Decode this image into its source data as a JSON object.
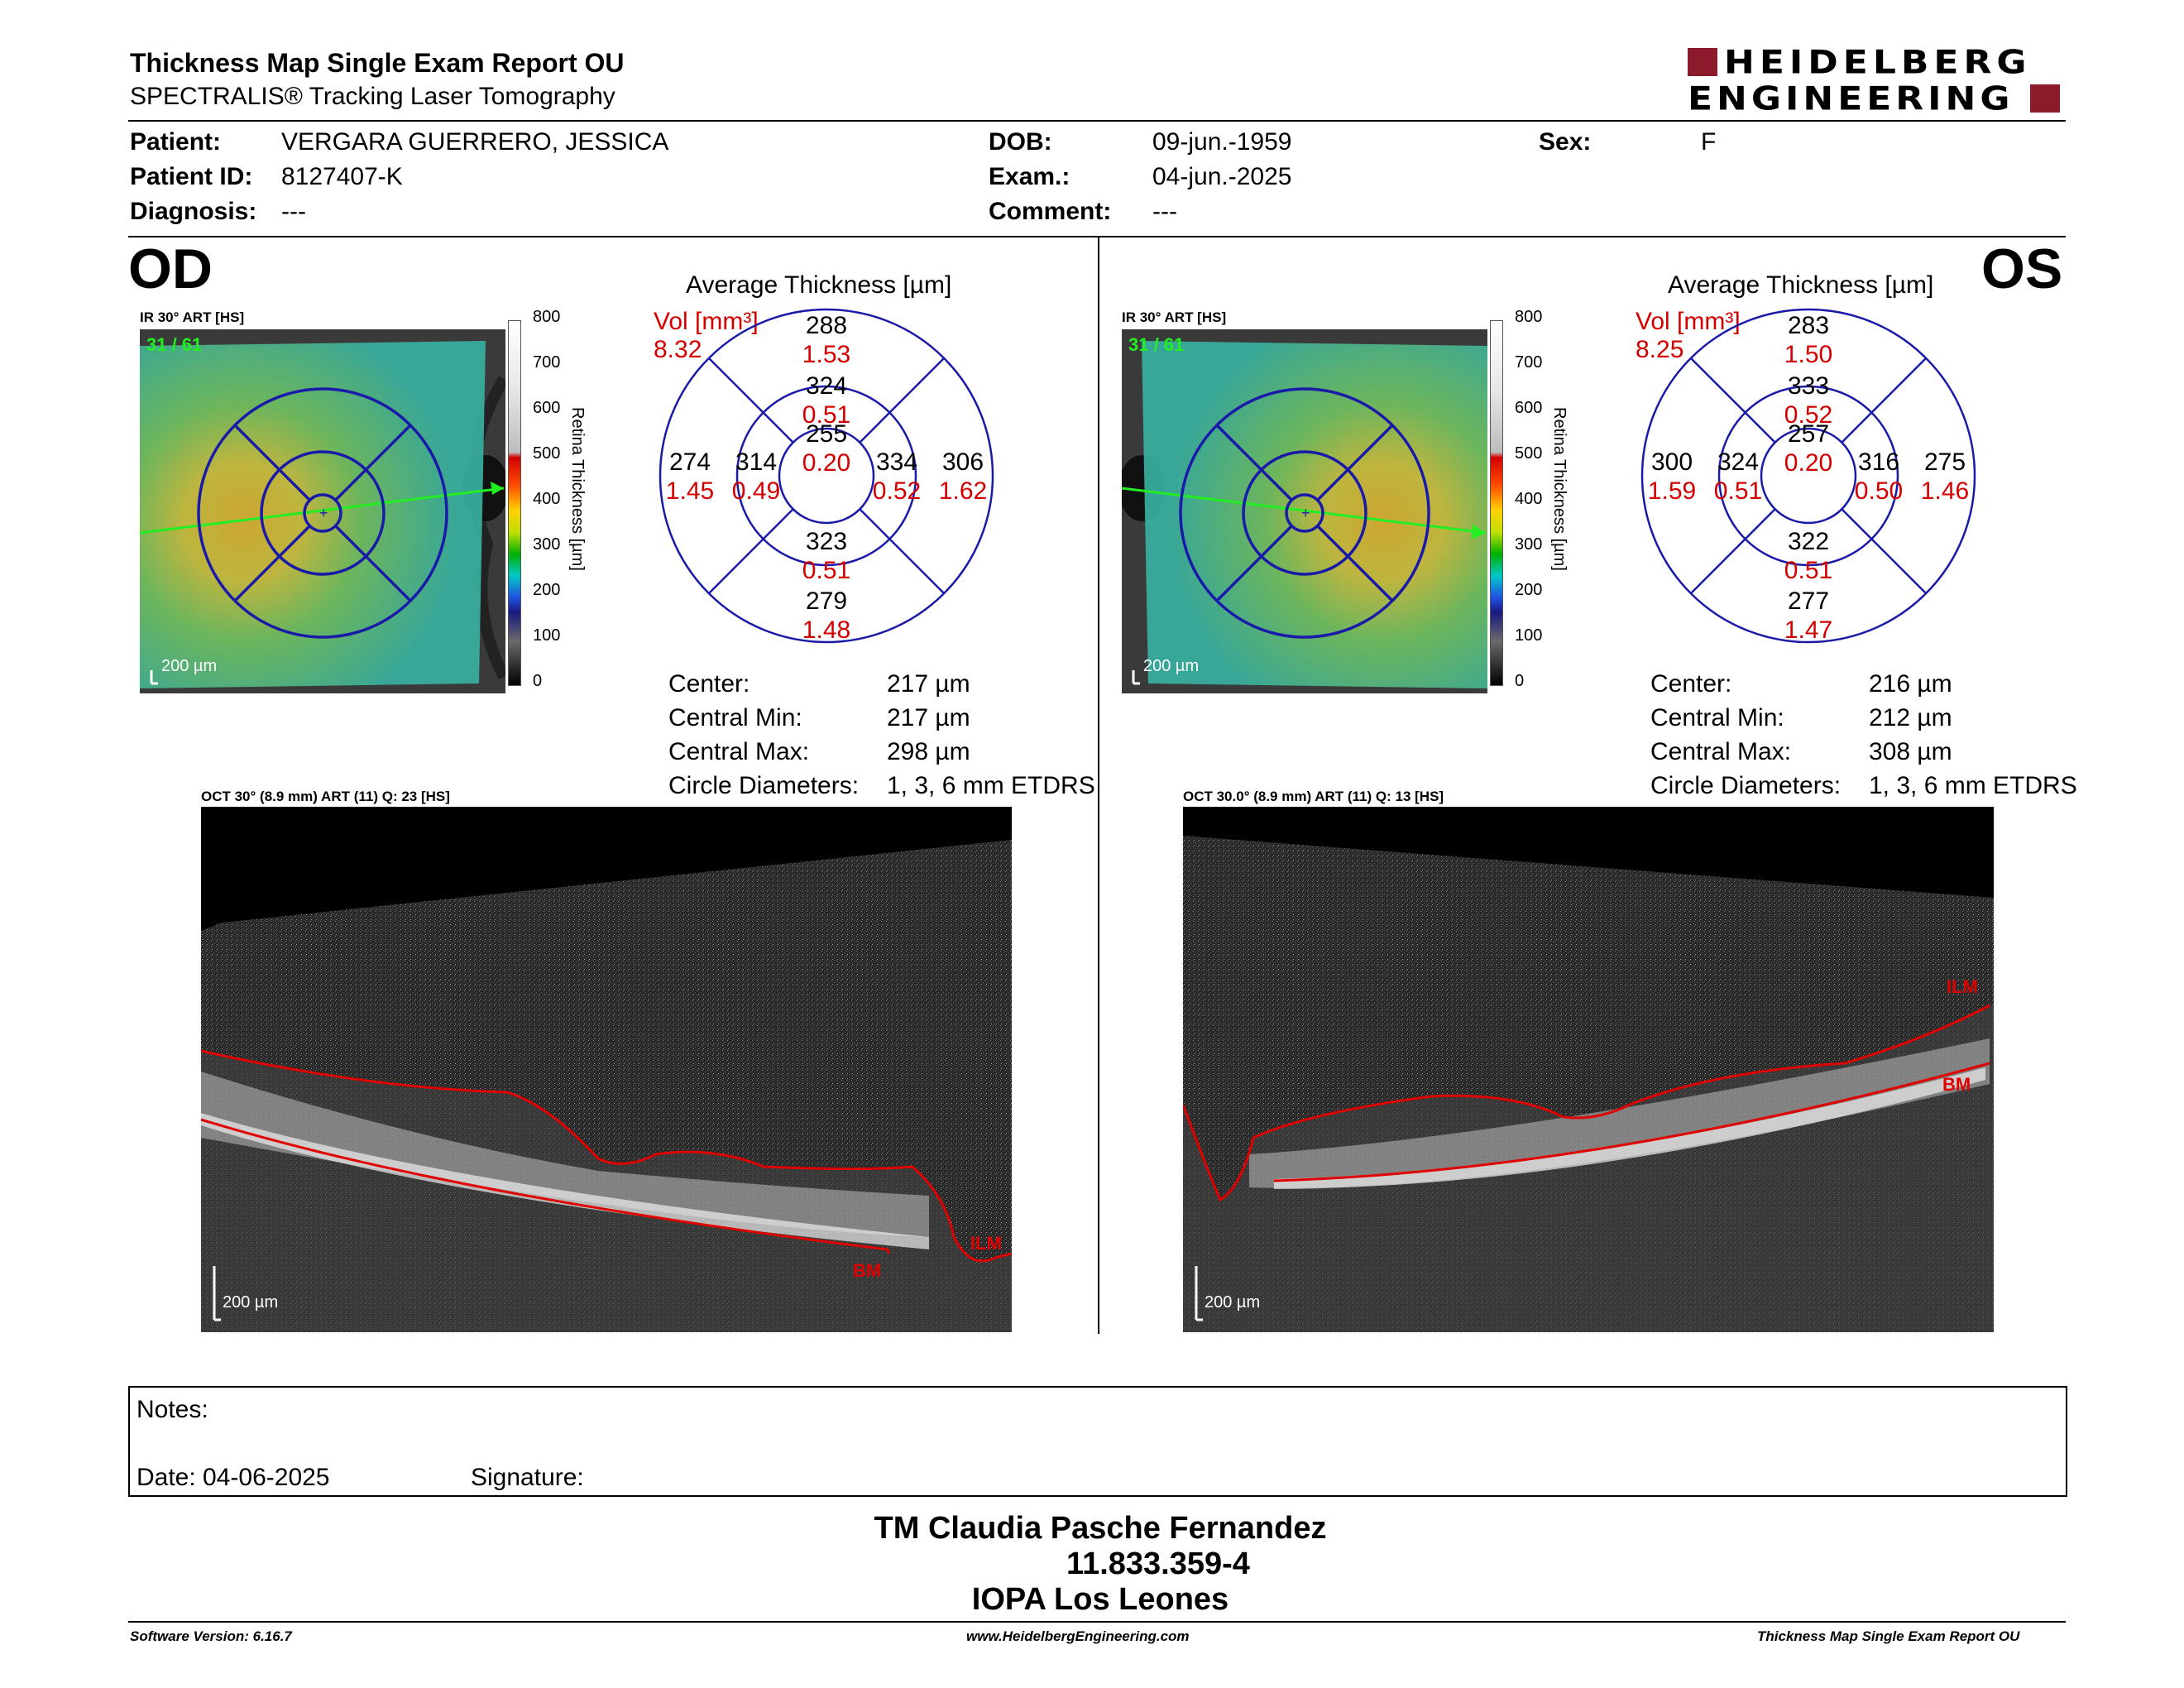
{
  "header": {
    "title": "Thickness Map Single Exam Report OU",
    "subtitle": "SPECTRALIS® Tracking Laser Tomography",
    "logo_line1": "HEIDELBERG",
    "logo_line2": "ENGINEERING",
    "brand_color": "#8b1a2b"
  },
  "patient": {
    "patient_label": "Patient:",
    "patient_value": "VERGARA GUERRERO, JESSICA",
    "id_label": "Patient ID:",
    "id_value": "8127407-K",
    "diagnosis_label": "Diagnosis:",
    "diagnosis_value": "---",
    "dob_label": "DOB:",
    "dob_value": "09-jun.-1959",
    "exam_label": "Exam.:",
    "exam_value": "04-jun.-2025",
    "comment_label": "Comment:",
    "comment_value": "---",
    "sex_label": "Sex:",
    "sex_value": "F"
  },
  "od": {
    "eye": "OD",
    "ir_label": "IR 30° ART [HS]",
    "ir_counter": "31 / 61",
    "scale": "200 µm",
    "colorbar_ticks": [
      "800",
      "700",
      "600",
      "500",
      "400",
      "300",
      "200",
      "100",
      "0"
    ],
    "colorbar_label": "Retina Thickness [µm]",
    "avg_title": "Average Thickness [µm]",
    "vol_label": "Vol [mm³]",
    "vol_value": "8.32",
    "etdrs": {
      "center_t": "255",
      "center_v": "0.20",
      "inner_sup_t": "324",
      "inner_sup_v": "0.51",
      "inner_inf_t": "323",
      "inner_inf_v": "0.51",
      "inner_left_t": "314",
      "inner_left_v": "0.49",
      "inner_right_t": "334",
      "inner_right_v": "0.52",
      "outer_sup_t": "288",
      "outer_sup_v": "1.53",
      "outer_inf_t": "279",
      "outer_inf_v": "1.48",
      "outer_left_t": "274",
      "outer_left_v": "1.45",
      "outer_right_t": "306",
      "outer_right_v": "1.62"
    },
    "stats": {
      "center_label": "Center:",
      "center_value": "217 µm",
      "min_label": "Central Min:",
      "min_value": "217 µm",
      "max_label": "Central Max:",
      "max_value": "298 µm",
      "diam_label": "Circle Diameters:",
      "diam_value": "1, 3, 6 mm ETDRS"
    },
    "oct_label": "OCT 30° (8.9 mm) ART (11) Q: 23 [HS]",
    "ilm": "ILM",
    "bm": "BM"
  },
  "os": {
    "eye": "OS",
    "ir_label": "IR 30° ART [HS]",
    "ir_counter": "31 / 61",
    "scale": "200 µm",
    "colorbar_ticks": [
      "800",
      "700",
      "600",
      "500",
      "400",
      "300",
      "200",
      "100",
      "0"
    ],
    "colorbar_label": "Retina Thickness [µm]",
    "avg_title": "Average Thickness [µm]",
    "vol_label": "Vol [mm³]",
    "vol_value": "8.25",
    "etdrs": {
      "center_t": "257",
      "center_v": "0.20",
      "inner_sup_t": "333",
      "inner_sup_v": "0.52",
      "inner_inf_t": "322",
      "inner_inf_v": "0.51",
      "inner_left_t": "324",
      "inner_left_v": "0.51",
      "inner_right_t": "316",
      "inner_right_v": "0.50",
      "outer_sup_t": "283",
      "outer_sup_v": "1.50",
      "outer_inf_t": "277",
      "outer_inf_v": "1.47",
      "outer_left_t": "300",
      "outer_left_v": "1.59",
      "outer_right_t": "275",
      "outer_right_v": "1.46"
    },
    "stats": {
      "center_label": "Center:",
      "center_value": "216 µm",
      "min_label": "Central Min:",
      "min_value": "212 µm",
      "max_label": "Central Max:",
      "max_value": "308 µm",
      "diam_label": "Circle Diameters:",
      "diam_value": "1, 3, 6 mm ETDRS"
    },
    "oct_label": "OCT 30.0° (8.9 mm) ART (11) Q: 13 [HS]",
    "ilm": "ILM",
    "bm": "BM"
  },
  "notes": {
    "notes_label": "Notes:",
    "date_label": "Date: 04-06-2025",
    "signature_label": "Signature:"
  },
  "signature": {
    "name": "TM Claudia Pasche Fernandez",
    "rut": "11.833.359-4",
    "clinic": "IOPA Los Leones"
  },
  "footer": {
    "software": "Software Version: 6.16.7",
    "website": "www.HeidelbergEngineering.com",
    "report": "Thickness Map Single Exam Report OU"
  },
  "colors": {
    "circle": "#1a1aa8",
    "thickness": "#000000",
    "volume": "#d40000",
    "segmentation": "#cc0000"
  }
}
